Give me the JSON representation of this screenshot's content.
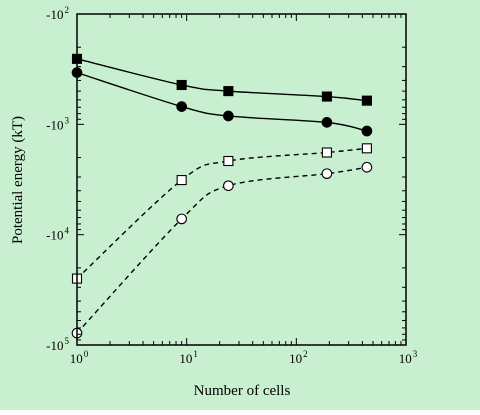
{
  "chart_data": {
    "type": "line",
    "title": "",
    "xlabel": "Number of cells",
    "ylabel": "Potential energy (kT)",
    "x_scale": "log",
    "y_scale": "log",
    "xlim": [
      1,
      1000
    ],
    "ylim": [
      -100000,
      -100
    ],
    "background_color": "#c8f0d0",
    "line_color": "#000000",
    "grid": false,
    "legend": null,
    "x_ticks": [
      {
        "base": "10",
        "exp": "0",
        "value": 1
      },
      {
        "base": "10",
        "exp": "1",
        "value": 10
      },
      {
        "base": "10",
        "exp": "2",
        "value": 100
      },
      {
        "base": "10",
        "exp": "3",
        "value": 1000
      }
    ],
    "y_ticks": [
      {
        "base": "-10",
        "exp": "2",
        "value": -100
      },
      {
        "base": "-10",
        "exp": "3",
        "value": -1000
      },
      {
        "base": "-10",
        "exp": "4",
        "value": -10000
      },
      {
        "base": "-10",
        "exp": "5",
        "value": -100000
      }
    ],
    "series": [
      {
        "marker": "filled-square",
        "line": "solid",
        "x": [
          1,
          9,
          24,
          190,
          440
        ],
        "y": [
          -255,
          -440,
          -500,
          -560,
          -610
        ]
      },
      {
        "marker": "filled-circle",
        "line": "solid",
        "x": [
          1,
          9,
          24,
          190,
          440
        ],
        "y": [
          -340,
          -690,
          -840,
          -960,
          -1150
        ]
      },
      {
        "marker": "open-square",
        "line": "dashed",
        "x": [
          1,
          9,
          24,
          190,
          440
        ],
        "y": [
          -25000,
          -3200,
          -2150,
          -1800,
          -1650
        ]
      },
      {
        "marker": "open-circle",
        "line": "dashed",
        "x": [
          1,
          9,
          24,
          190,
          440
        ],
        "y": [
          -78000,
          -7200,
          -3600,
          -2800,
          -2450
        ]
      }
    ]
  }
}
